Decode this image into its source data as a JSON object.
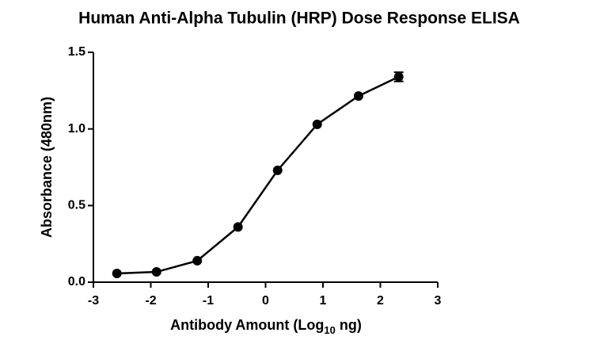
{
  "chart_data": {
    "type": "line",
    "title": "Human Anti-Alpha Tubulin (HRP) Dose Response ELISA",
    "xlabel": {
      "text": "Antibody Amount (Log",
      "subscript": "10",
      "suffix": " ng)"
    },
    "ylabel": "Absorbance (480nm)",
    "x": [
      -2.59,
      -1.9,
      -1.19,
      -0.48,
      0.21,
      0.9,
      1.62,
      2.32
    ],
    "series": [
      {
        "color": "#000000",
        "values": [
          0.057,
          0.067,
          0.14,
          0.36,
          0.73,
          1.03,
          1.215,
          1.34
        ],
        "errors": [
          null,
          null,
          null,
          null,
          null,
          null,
          null,
          0.03
        ]
      }
    ],
    "xlim": [
      -3,
      3
    ],
    "xticks": [
      -3,
      -2,
      -1,
      0,
      1,
      2,
      3
    ],
    "ylim": [
      0,
      1.5
    ],
    "yticks": [
      {
        "value": 0,
        "label": "0.0"
      },
      0.5,
      {
        "value": 1,
        "label": "1.0"
      },
      1.5
    ],
    "grid": false
  }
}
